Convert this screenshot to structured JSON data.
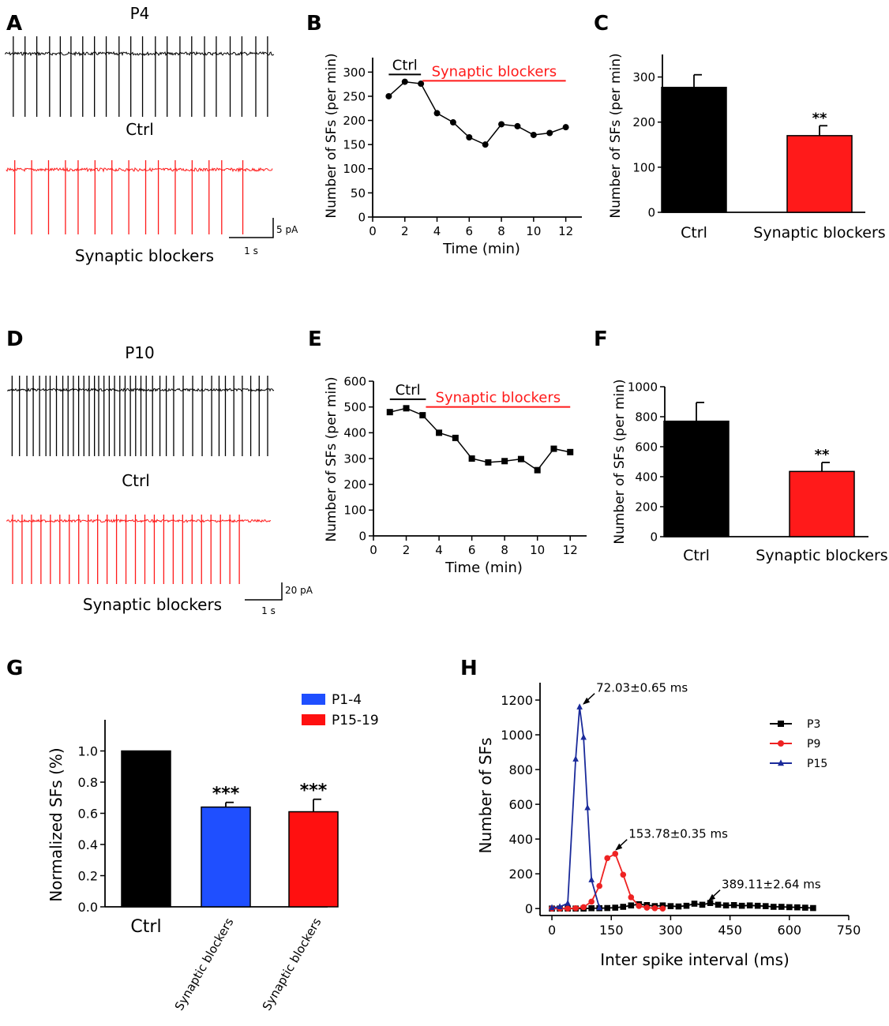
{
  "colors": {
    "ctrl": "#000000",
    "blocker": "#ff1a1a",
    "p14": "#1f4fff",
    "p1519": "#ff1010",
    "p3": "#000000",
    "p9": "#ee2222",
    "p15": "#1a2a9a"
  },
  "panels": {
    "A": "A",
    "B": "B",
    "C": "C",
    "D": "D",
    "E": "E",
    "F": "F",
    "G": "G",
    "H": "H"
  },
  "traceA": {
    "title": "P4",
    "ctrl_label": "Ctrl",
    "blocker_label": "Synaptic blockers",
    "scale_y": "5 pA",
    "scale_x": "1 s",
    "ctrl_spike_times": [
      0.4,
      0.95,
      1.5,
      2.1,
      2.6,
      3.1,
      3.65,
      4.2,
      4.75,
      5.35,
      5.9,
      6.45,
      7.05,
      7.6,
      8.2,
      8.75,
      9.35,
      9.9,
      10.55,
      11.1,
      11.75,
      12.3
    ],
    "blocker_spike_times": [
      0.4,
      1.2,
      2.0,
      2.8,
      3.4,
      4.2,
      5.0,
      5.8,
      6.6,
      7.2,
      8.0,
      8.8,
      9.6,
      10.2,
      11.2
    ],
    "baseline_noise": {
      "ctrl": 2.0,
      "blocker": 2.0
    }
  },
  "traceD": {
    "title": "P10",
    "ctrl_label": "Ctrl",
    "blocker_label": "Synaptic blockers",
    "scale_y": "20 pA",
    "scale_x": "1 s",
    "ctrl_spike_times": [
      0.2,
      0.55,
      0.9,
      1.2,
      1.5,
      1.8,
      2.0,
      2.3,
      2.6,
      2.85,
      3.1,
      3.35,
      3.6,
      3.85,
      4.1,
      4.3,
      4.55,
      4.8,
      5.05,
      5.3,
      5.55,
      5.8,
      6.05,
      6.3,
      6.55,
      6.85,
      7.2,
      7.5,
      7.85,
      8.3,
      8.75,
      9.2,
      9.65,
      10.0,
      10.3,
      10.7,
      11.1,
      11.5,
      11.9,
      12.3
    ],
    "blocker_spike_times": [
      0.3,
      0.75,
      1.2,
      1.65,
      2.1,
      2.55,
      3.0,
      3.45,
      3.9,
      4.35,
      4.8,
      5.25,
      5.7,
      6.15,
      6.6,
      7.05,
      7.5,
      7.95,
      8.4,
      8.85,
      9.3,
      9.75,
      10.2,
      10.65,
      11.1
    ],
    "baseline_noise": {
      "ctrl": 1.6,
      "blocker": 1.6
    }
  },
  "chart_data": [
    {
      "id": "B",
      "type": "line",
      "xlabel": "Time (min)",
      "ylabel": "Number of SFs (per min)",
      "xlim": [
        0,
        13
      ],
      "ylim": [
        0,
        330
      ],
      "xticks": [
        0,
        2,
        4,
        6,
        8,
        10,
        12
      ],
      "yticks": [
        0,
        50,
        100,
        150,
        200,
        250,
        300
      ],
      "marker": "circle",
      "x": [
        1,
        2,
        3,
        4,
        5,
        6,
        7,
        8,
        9,
        10,
        11,
        12
      ],
      "values": [
        250,
        280,
        276,
        215,
        196,
        165,
        150,
        192,
        188,
        170,
        174,
        186
      ],
      "annotations": [
        {
          "label": "Ctrl",
          "x0": 1,
          "x1": 3,
          "y": 295,
          "color": "ctrl"
        },
        {
          "label": "Synaptic blockers",
          "x0": 3.1,
          "x1": 12,
          "y": 282,
          "color": "blocker"
        }
      ]
    },
    {
      "id": "C",
      "type": "bar",
      "xlabel": "",
      "ylabel": "Number of SFs (per min)",
      "ylim": [
        0,
        350
      ],
      "yticks": [
        0,
        100,
        200,
        300
      ],
      "categories": [
        "Ctrl",
        "Synaptic blockers"
      ],
      "values": [
        277,
        170
      ],
      "errors": [
        28,
        22
      ],
      "significance": [
        "",
        "**"
      ],
      "bar_colors": [
        "ctrl",
        "blocker"
      ]
    },
    {
      "id": "E",
      "type": "line",
      "xlabel": "Time (min)",
      "ylabel": "Number of SFs (per min)",
      "xlim": [
        0,
        13
      ],
      "ylim": [
        0,
        600
      ],
      "xticks": [
        0,
        2,
        4,
        6,
        8,
        10,
        12
      ],
      "yticks": [
        0,
        100,
        200,
        300,
        400,
        500,
        600
      ],
      "marker": "square",
      "x": [
        1,
        2,
        3,
        4,
        5,
        6,
        7,
        8,
        9,
        10,
        11,
        12
      ],
      "values": [
        480,
        495,
        468,
        400,
        380,
        300,
        285,
        290,
        298,
        255,
        338,
        325
      ],
      "annotations": [
        {
          "label": "Ctrl",
          "x0": 1,
          "x1": 3.2,
          "y": 530,
          "color": "ctrl"
        },
        {
          "label": "Synaptic blockers",
          "x0": 3.2,
          "x1": 12,
          "y": 500,
          "color": "blocker"
        }
      ]
    },
    {
      "id": "F",
      "type": "bar",
      "xlabel": "",
      "ylabel": "Number of SFs (per min)",
      "ylim": [
        0,
        1000
      ],
      "yticks": [
        0,
        200,
        400,
        600,
        800,
        1000
      ],
      "categories": [
        "Ctrl",
        "Synaptic blockers"
      ],
      "values": [
        770,
        435
      ],
      "errors": [
        125,
        60
      ],
      "significance": [
        "",
        "**"
      ],
      "bar_colors": [
        "ctrl",
        "blocker"
      ]
    },
    {
      "id": "G",
      "type": "bar",
      "xlabel": "",
      "ylabel": "Normalized SFs (%)",
      "ylim": [
        0,
        1.2
      ],
      "yticks": [
        "0.0",
        "0.2",
        "0.4",
        "0.6",
        "0.8",
        "1.0"
      ],
      "categories": [
        "Ctrl",
        "Synaptic blockers",
        "Synaptic blockers"
      ],
      "values": [
        1.0,
        0.64,
        0.61
      ],
      "errors": [
        0,
        0.03,
        0.08
      ],
      "significance": [
        "",
        "***",
        "***"
      ],
      "bar_colors": [
        "ctrl",
        "p14",
        "p1519"
      ],
      "legend": [
        {
          "label": "P1-4",
          "color": "p14"
        },
        {
          "label": "P15-19",
          "color": "p1519"
        }
      ],
      "legend_position": "top-right"
    },
    {
      "id": "H",
      "type": "line",
      "xlabel": "Inter spike interval (ms)",
      "ylabel": "Number of SFs",
      "xlim": [
        -30,
        750
      ],
      "ylim": [
        -40,
        1300
      ],
      "xticks": [
        0,
        150,
        300,
        450,
        600,
        750
      ],
      "yticks": [
        0,
        200,
        400,
        600,
        800,
        1000,
        1200
      ],
      "series": [
        {
          "name": "P3",
          "color": "p3",
          "marker": "square",
          "x": [
            0,
            20,
            40,
            60,
            80,
            100,
            120,
            140,
            160,
            180,
            200,
            220,
            240,
            260,
            280,
            300,
            320,
            340,
            360,
            380,
            400,
            420,
            440,
            460,
            480,
            500,
            520,
            540,
            560,
            580,
            600,
            620,
            640,
            660
          ],
          "values": [
            0,
            0,
            0,
            0,
            0,
            2,
            2,
            3,
            5,
            10,
            18,
            25,
            20,
            14,
            18,
            14,
            12,
            16,
            28,
            22,
            32,
            22,
            18,
            20,
            16,
            18,
            16,
            14,
            10,
            10,
            8,
            7,
            5,
            3
          ]
        },
        {
          "name": "P9",
          "color": "p9",
          "marker": "circle",
          "x": [
            0,
            20,
            40,
            60,
            80,
            100,
            120,
            140,
            160,
            180,
            200,
            220,
            240,
            260,
            280
          ],
          "values": [
            0,
            0,
            0,
            2,
            8,
            40,
            130,
            290,
            315,
            195,
            65,
            15,
            5,
            2,
            0
          ]
        },
        {
          "name": "P15",
          "color": "p15",
          "marker": "triangle",
          "x": [
            0,
            20,
            40,
            60,
            70,
            80,
            90,
            100,
            120
          ],
          "values": [
            5,
            10,
            30,
            860,
            1160,
            985,
            580,
            165,
            5
          ]
        }
      ],
      "annotations": [
        {
          "label": "72.03±0.65 ms",
          "x": 72,
          "y": 1165
        },
        {
          "label": "153.78±0.35 ms",
          "x": 154,
          "y": 325
        },
        {
          "label": "389.11±2.64 ms",
          "x": 389,
          "y": 34
        }
      ],
      "legend_position": "top-right"
    }
  ]
}
